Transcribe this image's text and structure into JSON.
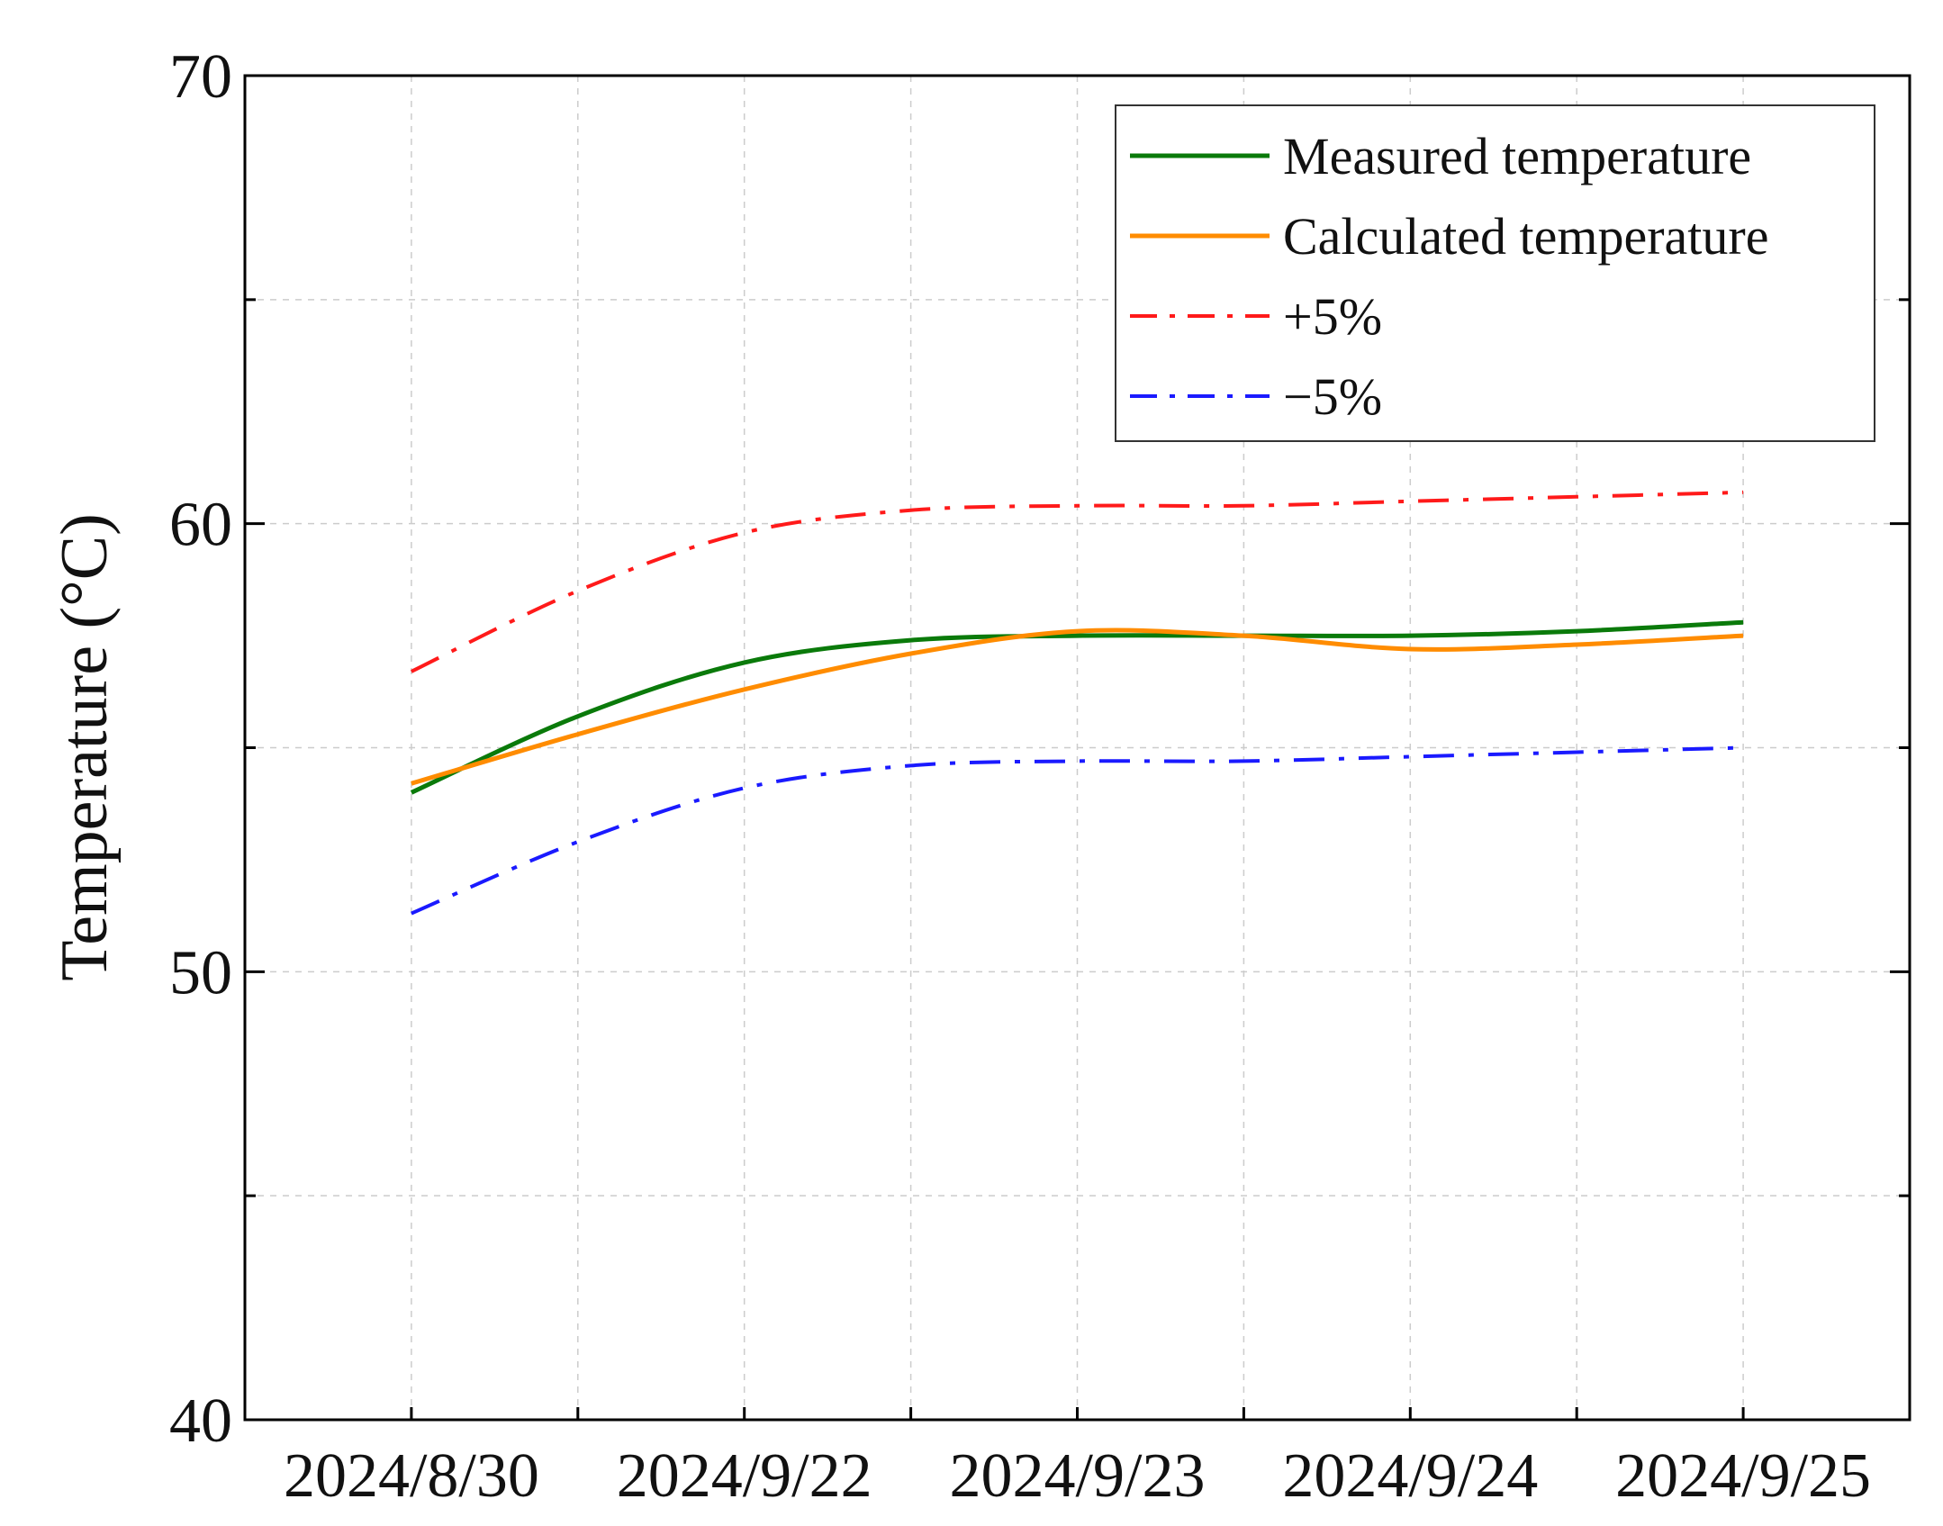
{
  "chart_data": {
    "type": "line",
    "title": "",
    "xlabel": "",
    "ylabel": "Temperature (°C)",
    "categories": [
      "2024/8/30",
      "2024/9/22",
      "2024/9/23",
      "2024/9/24",
      "2024/9/25"
    ],
    "x": [
      0,
      0.5,
      1,
      1.5,
      2,
      2.5,
      3,
      3.5,
      4
    ],
    "xlim": [
      -0.5,
      4.5
    ],
    "ylim": [
      40,
      70
    ],
    "yticks": [
      40,
      50,
      60,
      70
    ],
    "yticks_minor": [
      45,
      55,
      65
    ],
    "grid": true,
    "legend_position": "top-right",
    "series": [
      {
        "name": "Measured temperature",
        "color": "#0a7a0a",
        "style": "solid",
        "values": [
          54.0,
          55.7,
          56.9,
          57.4,
          57.5,
          57.5,
          57.5,
          57.6,
          57.8
        ]
      },
      {
        "name": "Calculated temperature",
        "color": "#ff8c00",
        "style": "solid",
        "values": [
          54.2,
          55.3,
          56.3,
          57.1,
          57.6,
          57.5,
          57.2,
          57.3,
          57.5
        ]
      },
      {
        "name": "+5%",
        "color": "#ff1a1a",
        "style": "dashdot",
        "values": [
          56.7,
          58.5,
          59.8,
          60.3,
          60.4,
          60.4,
          60.5,
          60.6,
          60.7
        ]
      },
      {
        "name": "−5%",
        "color": "#1a1aff",
        "style": "dashdot",
        "values": [
          51.3,
          52.9,
          54.1,
          54.6,
          54.7,
          54.7,
          54.8,
          54.9,
          55.0
        ]
      }
    ]
  }
}
